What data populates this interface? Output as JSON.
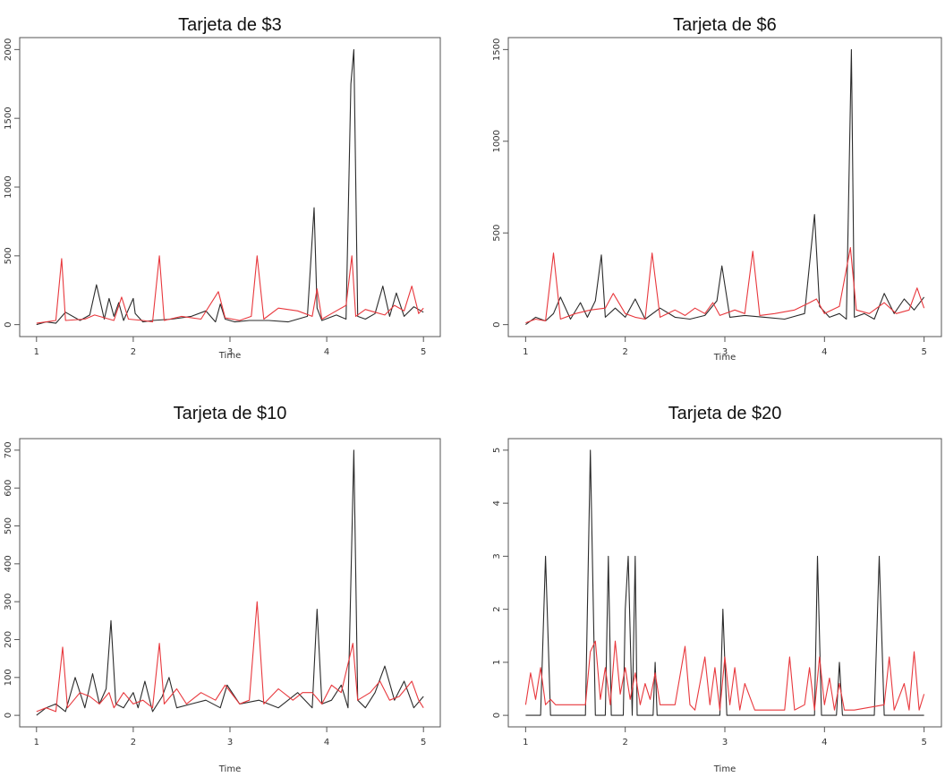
{
  "colors": {
    "series_black": "#2b2b2b",
    "series_red": "#e8383d",
    "frame": "#555555"
  },
  "chart_data": [
    {
      "type": "line",
      "title": "Tarjeta de $3",
      "xlabel": "Time",
      "ylabel": "",
      "xlim": [
        1,
        5
      ],
      "ylim": [
        0,
        2000
      ],
      "xticks": [
        "1",
        "2",
        "3",
        "4",
        "5"
      ],
      "yticks": [
        "0",
        "500",
        "1000",
        "1500",
        "2000"
      ],
      "series": [
        {
          "color": "black",
          "x": [
            1,
            1.1,
            1.2,
            1.3,
            1.45,
            1.55,
            1.62,
            1.7,
            1.75,
            1.8,
            1.85,
            1.9,
            2.0,
            2.02,
            2.1,
            2.2,
            2.4,
            2.6,
            2.75,
            2.85,
            2.9,
            2.95,
            3.05,
            3.2,
            3.4,
            3.6,
            3.8,
            3.87,
            3.9,
            3.95,
            4.1,
            4.2,
            4.25,
            4.28,
            4.32,
            4.4,
            4.5,
            4.58,
            4.65,
            4.72,
            4.8,
            4.9,
            5.0
          ],
          "y": [
            0,
            20,
            10,
            90,
            30,
            70,
            290,
            40,
            190,
            60,
            160,
            30,
            190,
            80,
            20,
            30,
            40,
            60,
            100,
            20,
            150,
            40,
            20,
            30,
            30,
            20,
            60,
            850,
            120,
            30,
            70,
            40,
            1750,
            2000,
            60,
            40,
            80,
            280,
            60,
            230,
            60,
            130,
            90
          ]
        },
        {
          "color": "red",
          "x": [
            1,
            1.1,
            1.2,
            1.26,
            1.3,
            1.5,
            1.6,
            1.8,
            1.88,
            1.95,
            2.1,
            2.2,
            2.27,
            2.32,
            2.5,
            2.7,
            2.88,
            2.95,
            3.1,
            3.22,
            3.28,
            3.35,
            3.5,
            3.7,
            3.85,
            3.9,
            3.95,
            4.05,
            4.2,
            4.26,
            4.3,
            4.4,
            4.5,
            4.6,
            4.7,
            4.8,
            4.88,
            4.95,
            5.0
          ],
          "y": [
            10,
            20,
            30,
            480,
            30,
            40,
            70,
            30,
            200,
            40,
            30,
            20,
            500,
            30,
            60,
            40,
            240,
            50,
            30,
            60,
            500,
            40,
            120,
            100,
            60,
            260,
            40,
            80,
            140,
            500,
            60,
            110,
            90,
            70,
            140,
            100,
            280,
            80,
            120
          ]
        }
      ]
    },
    {
      "type": "line",
      "title": "Tarjeta de $6",
      "xlabel": "Time",
      "ylabel": "",
      "xlim": [
        1,
        5
      ],
      "ylim": [
        0,
        1500
      ],
      "xticks": [
        "1",
        "2",
        "3",
        "4",
        "5"
      ],
      "yticks": [
        "0",
        "500",
        "1000",
        "1500"
      ],
      "series": [
        {
          "color": "black",
          "x": [
            1,
            1.1,
            1.2,
            1.28,
            1.35,
            1.45,
            1.55,
            1.62,
            1.7,
            1.76,
            1.8,
            1.9,
            2.0,
            2.1,
            2.2,
            2.35,
            2.5,
            2.65,
            2.8,
            2.92,
            2.97,
            3.05,
            3.2,
            3.4,
            3.6,
            3.8,
            3.9,
            3.95,
            4.05,
            4.15,
            4.22,
            4.27,
            4.3,
            4.4,
            4.5,
            4.6,
            4.7,
            4.8,
            4.9,
            5.0
          ],
          "y": [
            0,
            40,
            20,
            60,
            150,
            30,
            120,
            40,
            130,
            380,
            40,
            90,
            40,
            140,
            30,
            90,
            40,
            30,
            50,
            130,
            320,
            40,
            50,
            40,
            30,
            60,
            600,
            100,
            40,
            60,
            30,
            1500,
            40,
            60,
            30,
            170,
            60,
            140,
            80,
            150
          ]
        },
        {
          "color": "red",
          "x": [
            1,
            1.1,
            1.2,
            1.28,
            1.35,
            1.5,
            1.65,
            1.8,
            1.88,
            2.0,
            2.1,
            2.2,
            2.27,
            2.35,
            2.5,
            2.6,
            2.7,
            2.8,
            2.88,
            2.95,
            3.1,
            3.2,
            3.28,
            3.35,
            3.5,
            3.7,
            3.85,
            3.92,
            4.0,
            4.15,
            4.26,
            4.32,
            4.45,
            4.6,
            4.72,
            4.85,
            4.93,
            5.0
          ],
          "y": [
            10,
            30,
            20,
            390,
            30,
            60,
            80,
            90,
            170,
            60,
            40,
            30,
            390,
            40,
            80,
            50,
            90,
            60,
            120,
            50,
            80,
            60,
            400,
            50,
            60,
            80,
            120,
            140,
            60,
            100,
            420,
            80,
            60,
            120,
            60,
            80,
            200,
            90
          ]
        }
      ]
    },
    {
      "type": "line",
      "title": "Tarjeta de $10",
      "xlabel": "Time",
      "ylabel": "",
      "xlim": [
        1,
        5
      ],
      "ylim": [
        0,
        700
      ],
      "xticks": [
        "1",
        "2",
        "3",
        "4",
        "5"
      ],
      "yticks": [
        "0",
        "100",
        "200",
        "300",
        "400",
        "500",
        "600",
        "700"
      ],
      "series": [
        {
          "color": "black",
          "x": [
            1,
            1.1,
            1.2,
            1.3,
            1.4,
            1.5,
            1.58,
            1.65,
            1.72,
            1.77,
            1.82,
            1.9,
            2.0,
            2.05,
            2.12,
            2.2,
            2.3,
            2.37,
            2.45,
            2.6,
            2.75,
            2.9,
            2.97,
            3.1,
            3.3,
            3.5,
            3.7,
            3.85,
            3.9,
            3.95,
            4.05,
            4.15,
            4.22,
            4.28,
            4.32,
            4.4,
            4.5,
            4.6,
            4.7,
            4.8,
            4.9,
            5.0
          ],
          "y": [
            0,
            20,
            30,
            10,
            100,
            20,
            110,
            30,
            70,
            250,
            30,
            20,
            60,
            20,
            90,
            10,
            50,
            100,
            20,
            30,
            40,
            20,
            80,
            30,
            40,
            20,
            60,
            20,
            280,
            30,
            40,
            80,
            20,
            700,
            40,
            20,
            60,
            130,
            40,
            90,
            20,
            50
          ]
        },
        {
          "color": "red",
          "x": [
            1,
            1.1,
            1.2,
            1.27,
            1.32,
            1.45,
            1.55,
            1.65,
            1.75,
            1.8,
            1.9,
            2.0,
            2.1,
            2.2,
            2.27,
            2.32,
            2.45,
            2.55,
            2.7,
            2.85,
            2.95,
            3.1,
            3.2,
            3.28,
            3.35,
            3.5,
            3.65,
            3.75,
            3.85,
            3.95,
            4.05,
            4.15,
            4.27,
            4.32,
            4.45,
            4.55,
            4.65,
            4.75,
            4.88,
            4.95,
            5.0
          ],
          "y": [
            10,
            20,
            10,
            180,
            20,
            60,
            50,
            30,
            60,
            20,
            60,
            30,
            40,
            20,
            190,
            30,
            70,
            30,
            60,
            40,
            80,
            30,
            40,
            300,
            30,
            70,
            40,
            60,
            60,
            30,
            80,
            60,
            190,
            40,
            60,
            90,
            40,
            50,
            90,
            40,
            20
          ]
        }
      ]
    },
    {
      "type": "line",
      "title": "Tarjeta de $20",
      "xlabel": "Time",
      "ylabel": "",
      "xlim": [
        1,
        5
      ],
      "ylim": [
        0,
        5
      ],
      "xticks": [
        "1",
        "2",
        "3",
        "4",
        "5"
      ],
      "yticks": [
        "0",
        "1",
        "2",
        "3",
        "4",
        "5"
      ],
      "series": [
        {
          "color": "black",
          "x": [
            1,
            1.15,
            1.2,
            1.25,
            1.6,
            1.65,
            1.7,
            1.8,
            1.83,
            1.86,
            1.98,
            2.0,
            2.03,
            2.07,
            2.1,
            2.12,
            2.28,
            2.3,
            2.32,
            2.95,
            2.98,
            3.02,
            3.9,
            3.93,
            3.97,
            4.12,
            4.15,
            4.18,
            4.5,
            4.55,
            4.6,
            5.0
          ],
          "y": [
            0,
            0,
            3,
            0,
            0,
            5,
            0,
            0,
            3,
            0,
            0,
            2,
            3,
            0,
            3,
            0,
            0,
            1,
            0,
            0,
            2,
            0,
            0,
            3,
            0,
            0,
            1,
            0,
            0,
            3,
            0,
            0
          ]
        },
        {
          "color": "red",
          "x": [
            1,
            1.05,
            1.1,
            1.15,
            1.2,
            1.25,
            1.3,
            1.6,
            1.65,
            1.7,
            1.75,
            1.8,
            1.85,
            1.9,
            1.95,
            2.0,
            2.05,
            2.1,
            2.15,
            2.2,
            2.25,
            2.3,
            2.35,
            2.5,
            2.6,
            2.65,
            2.7,
            2.8,
            2.85,
            2.9,
            2.95,
            3.0,
            3.05,
            3.1,
            3.15,
            3.2,
            3.3,
            3.6,
            3.65,
            3.7,
            3.8,
            3.85,
            3.9,
            3.95,
            4.0,
            4.05,
            4.1,
            4.15,
            4.2,
            4.3,
            4.6,
            4.65,
            4.7,
            4.8,
            4.85,
            4.9,
            4.95,
            5.0
          ],
          "y": [
            0.2,
            0.8,
            0.3,
            0.9,
            0.2,
            0.3,
            0.2,
            0.2,
            1.2,
            1.4,
            0.3,
            0.9,
            0.2,
            1.4,
            0.4,
            0.9,
            0.3,
            0.8,
            0.2,
            0.6,
            0.3,
            0.8,
            0.2,
            0.2,
            1.3,
            0.2,
            0.1,
            1.1,
            0.2,
            0.9,
            0.1,
            1.1,
            0.2,
            0.9,
            0.1,
            0.6,
            0.1,
            0.1,
            1.1,
            0.1,
            0.2,
            0.9,
            0.1,
            1.1,
            0.2,
            0.7,
            0.1,
            0.6,
            0.1,
            0.1,
            0.2,
            1.1,
            0.1,
            0.6,
            0.1,
            1.2,
            0.1,
            0.4
          ]
        }
      ]
    }
  ]
}
